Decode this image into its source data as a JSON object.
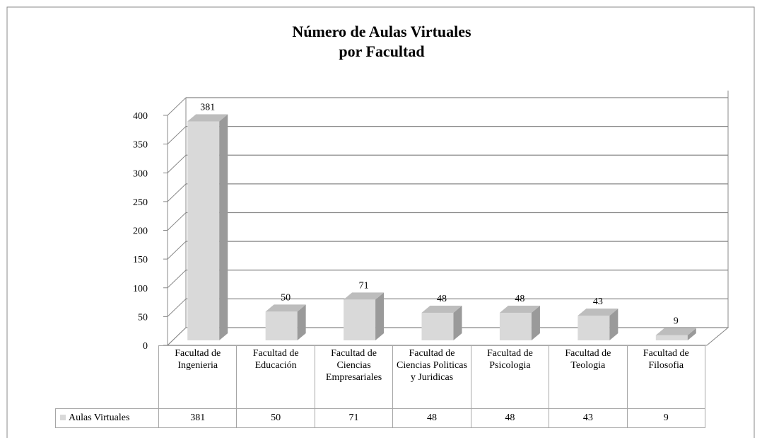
{
  "chart_data": {
    "type": "bar3d",
    "title": [
      "Número de Aulas Virtuales",
      "por Facultad"
    ],
    "categories": [
      "Facultad de Ingenieria",
      "Facultad de Educación",
      "Facultad de Ciencias Empresariales",
      "Facultad de Ciencias Politicas y Juridicas",
      "Facultad de Psicologia",
      "Facultad de Teologia",
      "Facultad de Filosofia"
    ],
    "series": [
      {
        "name": "Aulas Virtuales",
        "color": "#d9d9d9",
        "values": [
          381,
          50,
          71,
          48,
          48,
          43,
          9
        ]
      }
    ],
    "ylim": [
      0,
      400
    ],
    "yticks": [
      0,
      50,
      100,
      150,
      200,
      250,
      300,
      350,
      400
    ],
    "grid": true,
    "data_table": true
  }
}
